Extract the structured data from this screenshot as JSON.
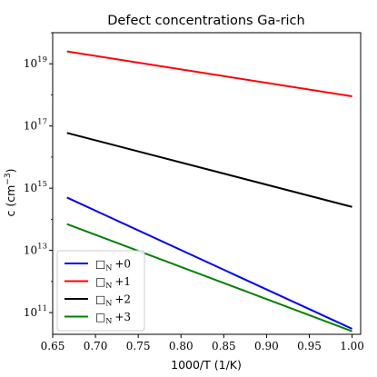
{
  "chart_data": {
    "type": "line",
    "title": "Defect concentrations Ga-rich",
    "xlabel": "1000/T (1/K)",
    "ylabel": "c (cm",
    "ylabel_exponent": "−3",
    "ylabel_suffix": ")",
    "xlim": [
      0.65,
      1.01
    ],
    "ylim": [
      20000000000.0,
      1e+20
    ],
    "yscale": "log",
    "x_ticks": [
      "0.65",
      "0.70",
      "0.75",
      "0.80",
      "0.85",
      "0.90",
      "0.95",
      "1.00"
    ],
    "x_tick_values": [
      0.65,
      0.7,
      0.75,
      0.8,
      0.85,
      0.9,
      0.95,
      1.0
    ],
    "y_tick_base": "10",
    "y_tick_exponents": [
      "11",
      "13",
      "15",
      "17",
      "19"
    ],
    "y_tick_values": [
      100000000000.0,
      10000000000000.0,
      1000000000000000.0,
      1e+17,
      1e+19
    ],
    "grid": false,
    "legend_position": "lower-left",
    "series": [
      {
        "name": "□N +0",
        "label_box": "□",
        "label_sub": "N",
        "label_charge": "+0",
        "color": "#0000ff",
        "x": [
          0.6667,
          1.0
        ],
        "y": [
          500000000000000.0,
          30000000000.0
        ]
      },
      {
        "name": "□N +1",
        "label_box": "□",
        "label_sub": "N",
        "label_charge": "+1",
        "color": "#ff0000",
        "x": [
          0.6667,
          1.0
        ],
        "y": [
          2.5e+19,
          9e+17
        ]
      },
      {
        "name": "□N +2",
        "label_box": "□",
        "label_sub": "N",
        "label_charge": "+2",
        "color": "#000000",
        "x": [
          0.6667,
          1.0
        ],
        "y": [
          6e+16,
          250000000000000.0
        ]
      },
      {
        "name": "□N +3",
        "label_box": "□",
        "label_sub": "N",
        "label_charge": "+3",
        "color": "#008000",
        "x": [
          0.6667,
          1.0
        ],
        "y": [
          70000000000000.0,
          25000000000.0
        ]
      }
    ]
  }
}
